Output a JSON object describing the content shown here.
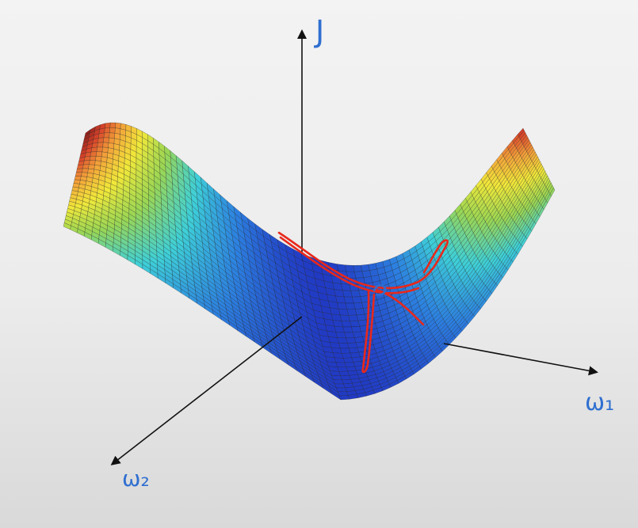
{
  "axes": {
    "vertical": {
      "label": "J"
    },
    "right": {
      "label": "ω₁"
    },
    "left": {
      "label": "ω₂"
    }
  },
  "surface": {
    "colormap": [
      "#1f2fbf",
      "#2c7fe0",
      "#3ed0d8",
      "#9ad654",
      "#f1e83a",
      "#f3a23a",
      "#d8432a",
      "#8a1e1a"
    ],
    "mesh_color": "#1a1a1a"
  },
  "annotations": {
    "stroke_color": "#e8281c"
  }
}
